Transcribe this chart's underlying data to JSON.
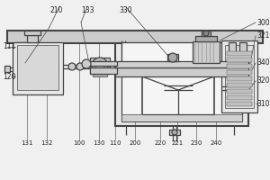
{
  "bg_color": "#f0f0f0",
  "line_color": "#444444",
  "fill_light": "#e8e8e8",
  "fill_mid": "#cccccc",
  "fill_dark": "#aaaaaa",
  "label_color": "#222222",
  "label_fs": 5.5,
  "lw_thick": 1.5,
  "lw_main": 0.9,
  "lw_thin": 0.5
}
